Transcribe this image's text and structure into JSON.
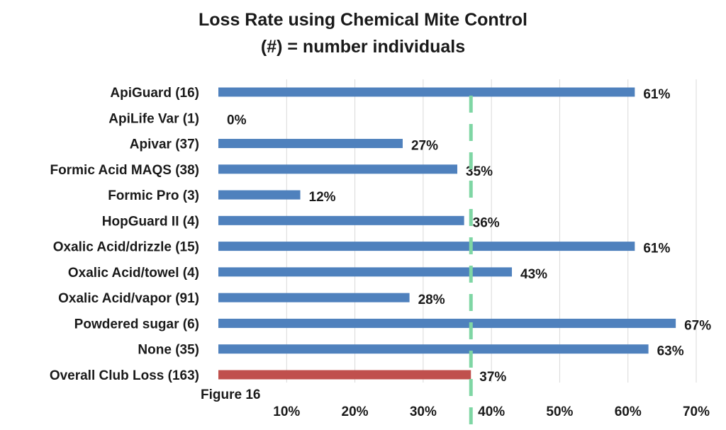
{
  "chart_data": {
    "type": "bar",
    "orientation": "horizontal",
    "title": "Loss Rate using Chemical Mite Control",
    "subtitle": "(#) = number individuals",
    "categories": [
      "ApiGuard (16)",
      "ApiLife Var (1)",
      "Apivar (37)",
      "Formic Acid MAQS (38)",
      "Formic Pro (3)",
      "HopGuard II (4)",
      "Oxalic Acid/drizzle (15)",
      "Oxalic Acid/towel (4)",
      "Oxalic Acid/vapor (91)",
      "Powdered sugar (6)",
      "None (35)",
      "Overall Club Loss (163)"
    ],
    "values": [
      61,
      0,
      27,
      35,
      12,
      36,
      61,
      43,
      28,
      67,
      63,
      37
    ],
    "data_labels": [
      "61%",
      "0%",
      "27%",
      "35%",
      "12%",
      "36%",
      "61%",
      "43%",
      "28%",
      "67%",
      "63%",
      "37%"
    ],
    "highlight_index": 11,
    "reference_line": {
      "value": 37,
      "style": "dashed"
    },
    "xlim": [
      0,
      70
    ],
    "xticks": [
      10,
      20,
      30,
      40,
      50,
      60,
      70
    ],
    "xtick_labels": [
      "10%",
      "20%",
      "30%",
      "40%",
      "50%",
      "60%",
      "70%"
    ],
    "xlabel": "",
    "ylabel": "",
    "grid": "vertical",
    "legend": "none",
    "colors": {
      "bar": "#4f81bd",
      "highlight_bar": "#c0504d",
      "reference_line": "#7fd6a4",
      "grid": "#d9d9d9",
      "text": "#1a1a1a"
    }
  },
  "caption": "Figure 16"
}
